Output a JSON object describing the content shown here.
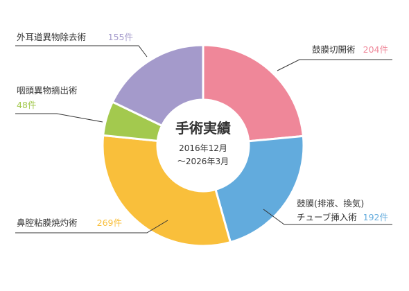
{
  "chart_data": {
    "type": "pie",
    "title": "手術実績",
    "subtitle_lines": [
      "2016年12月",
      "〜2026年3月"
    ],
    "slices": [
      {
        "label_lines": [
          "鼓膜切開術"
        ],
        "count_label": "204件",
        "value": 204,
        "color": "#ef8799"
      },
      {
        "label_lines": [
          "鼓膜(排液、換気)",
          "チューブ挿入術"
        ],
        "count_label": "192件",
        "value": 192,
        "color": "#62abdd"
      },
      {
        "label_lines": [
          "鼻腔粘膜焼灼術"
        ],
        "count_label": "269件",
        "value": 269,
        "color": "#f9bf3b"
      },
      {
        "label_lines": [
          "咽頭異物摘出術"
        ],
        "count_label": "48件",
        "value": 48,
        "color": "#a3c94e"
      },
      {
        "label_lines": [
          "外耳道異物除去術"
        ],
        "count_label": "155件",
        "value": 155,
        "color": "#a49acb"
      }
    ]
  }
}
